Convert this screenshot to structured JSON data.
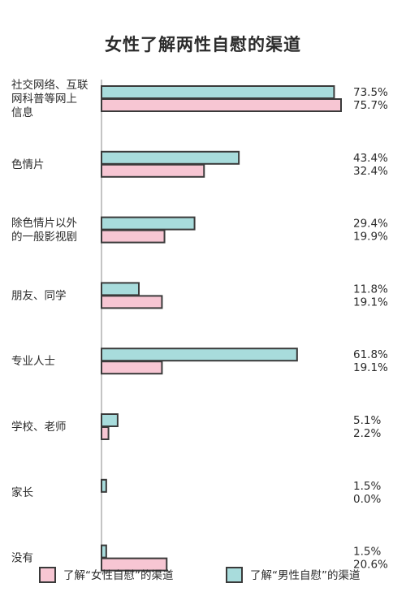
{
  "colors": {
    "female": "#f7c6d3",
    "male": "#a8dcdc",
    "stroke": "#3a3a3a",
    "axis": "#b0b0b0"
  },
  "chart_data": {
    "type": "bar",
    "orientation": "horizontal",
    "title": "女性了解两性自慰的渠道",
    "xlabel": "",
    "ylabel": "",
    "xlim": [
      0,
      80
    ],
    "grid": false,
    "legend_position": "bottom",
    "categories": [
      [
        "社交网络、互联",
        "网科普等网上",
        "信息"
      ],
      [
        "色情片"
      ],
      [
        "除色情片以外",
        "的一般影视剧"
      ],
      [
        "朋友、同学"
      ],
      [
        "专业人士"
      ],
      [
        "学校、老师"
      ],
      [
        "家长"
      ],
      [
        "没有"
      ]
    ],
    "series": [
      {
        "name": "了解“男性自慰”的渠道",
        "values": [
          73.5,
          43.4,
          29.4,
          11.8,
          61.8,
          5.1,
          1.5,
          1.5
        ],
        "labels": [
          "73.5%",
          "43.4%",
          "29.4%",
          "11.8%",
          "61.8%",
          "5.1%",
          "1.5%",
          "1.5%"
        ]
      },
      {
        "name": "了解“女性自慰”的渠道",
        "values": [
          75.7,
          32.4,
          19.9,
          19.1,
          19.1,
          2.2,
          0.0,
          20.6
        ],
        "labels": [
          "75.7%",
          "32.4%",
          "19.9%",
          "19.1%",
          "19.1%",
          "2.2%",
          "0.0%",
          "20.6%"
        ]
      }
    ]
  }
}
